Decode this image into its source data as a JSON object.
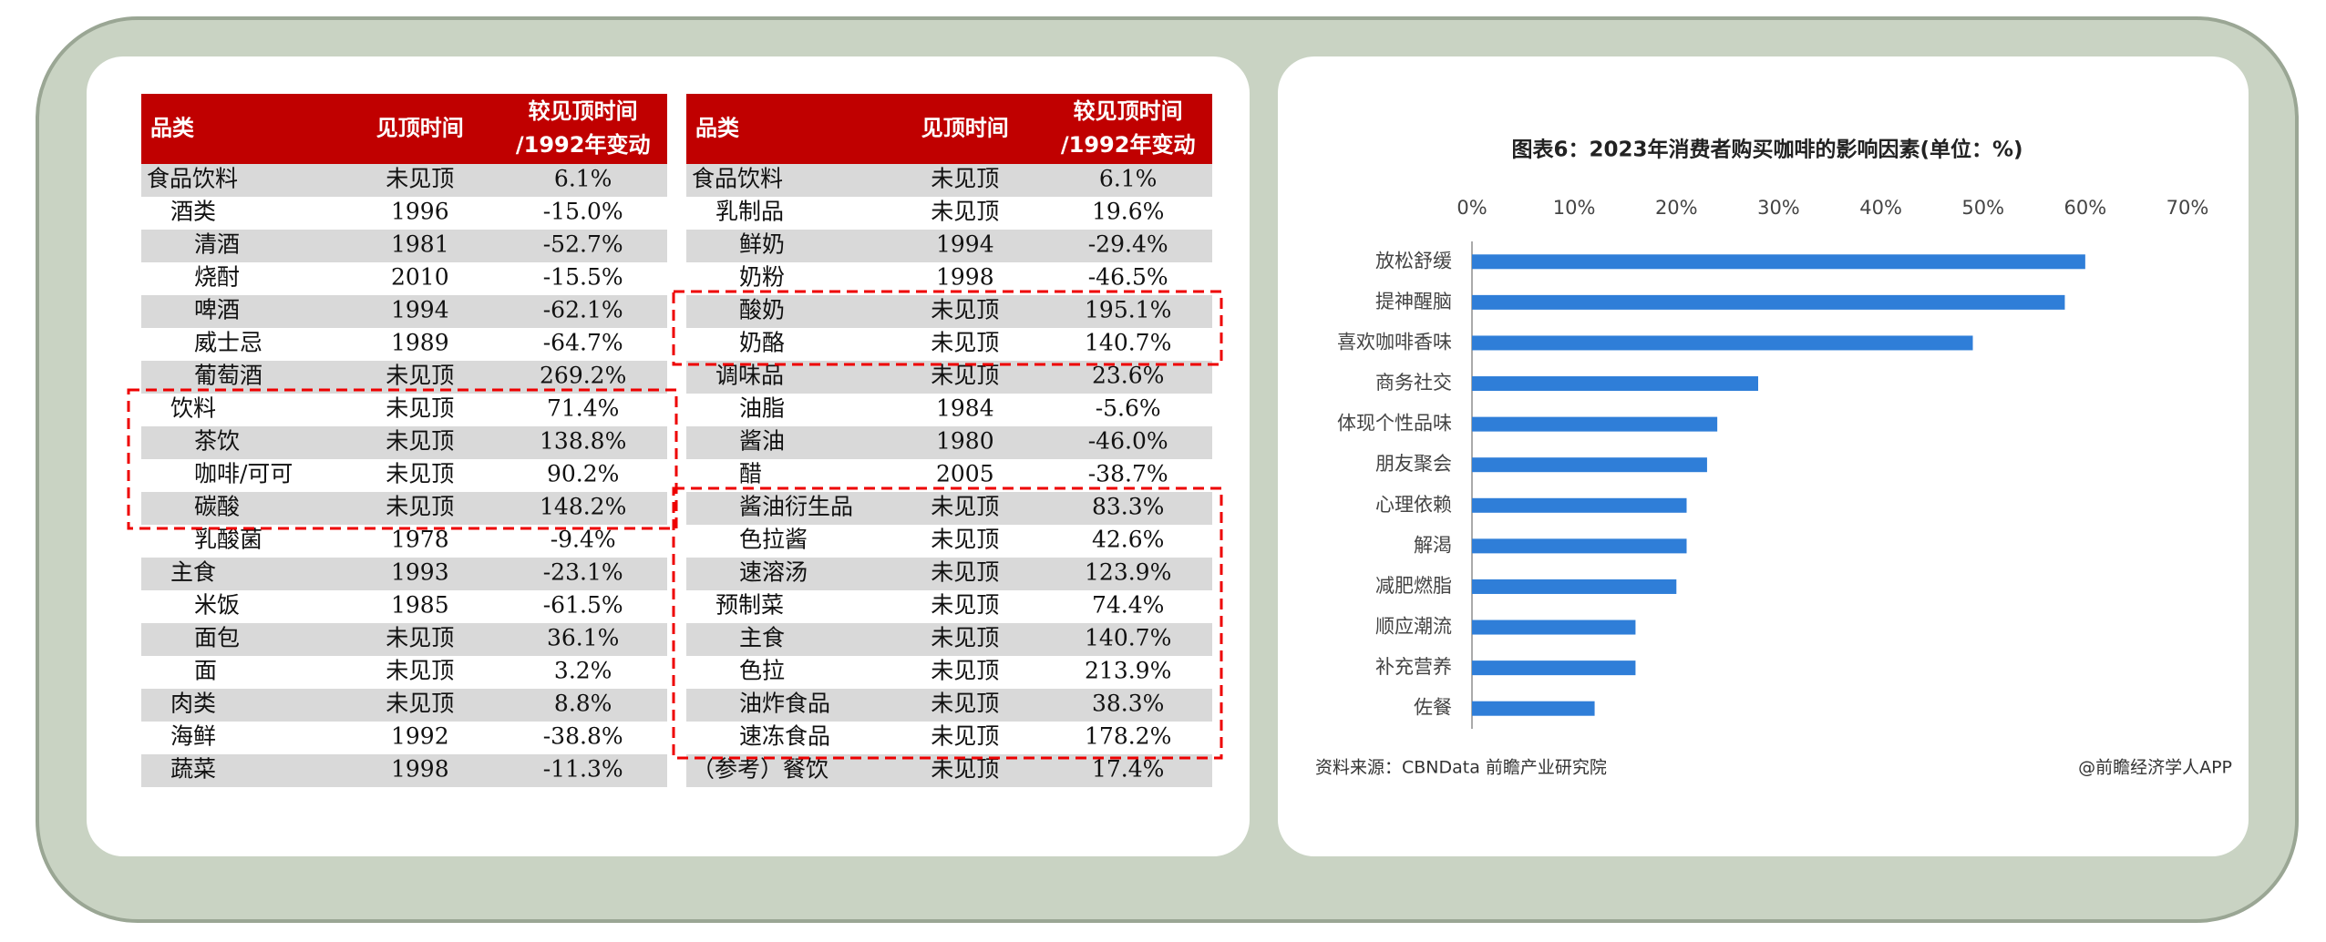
{
  "tables": [
    {
      "header": [
        "品类",
        "见顶时间",
        [
          "较见顶时间",
          "/1992年变动"
        ]
      ],
      "rows": [
        [
          "食品饮料",
          "未见顶",
          "6.1%"
        ],
        [
          "酒类",
          "1996",
          "-15.0%"
        ],
        [
          "清酒",
          "1981",
          "-52.7%"
        ],
        [
          "烧酎",
          "2010",
          "-15.5%"
        ],
        [
          "啤酒",
          "1994",
          "-62.1%"
        ],
        [
          "威士忌",
          "1989",
          "-64.7%"
        ],
        [
          "葡萄酒",
          "未见顶",
          "269.2%"
        ],
        [
          "饮料",
          "未见顶",
          "71.4%"
        ],
        [
          "茶饮",
          "未见顶",
          "138.8%"
        ],
        [
          "咖啡/可可",
          "未见顶",
          "90.2%"
        ],
        [
          "碳酸",
          "未见顶",
          "148.2%"
        ],
        [
          "乳酸菌",
          "1978",
          "-9.4%"
        ],
        [
          "主食",
          "1993",
          "-23.1%"
        ],
        [
          "米饭",
          "1985",
          "-61.5%"
        ],
        [
          "面包",
          "未见顶",
          "36.1%"
        ],
        [
          "面",
          "未见顶",
          "3.2%"
        ],
        [
          "肉类",
          "未见顶",
          "8.8%"
        ],
        [
          "海鲜",
          "1992",
          "-38.8%"
        ],
        [
          "蔬菜",
          "1998",
          "-11.3%"
        ]
      ]
    },
    {
      "header": [
        "品类",
        "见顶时间",
        [
          "较见顶时间",
          "/1992年变动"
        ]
      ],
      "rows": [
        [
          "食品饮料",
          "未见顶",
          "6.1%"
        ],
        [
          "乳制品",
          "未见顶",
          "19.6%"
        ],
        [
          "鲜奶",
          "1994",
          "-29.4%"
        ],
        [
          "奶粉",
          "1998",
          "-46.5%"
        ],
        [
          "酸奶",
          "未见顶",
          "195.1%"
        ],
        [
          "奶酪",
          "未见顶",
          "140.7%"
        ],
        [
          "调味品",
          "未见顶",
          "23.6%"
        ],
        [
          "油脂",
          "1984",
          "-5.6%"
        ],
        [
          "酱油",
          "1980",
          "-46.0%"
        ],
        [
          "醋",
          "2005",
          "-38.7%"
        ],
        [
          "酱油衍生品",
          "未见顶",
          "83.3%"
        ],
        [
          "色拉酱",
          "未见顶",
          "42.6%"
        ],
        [
          "速溶汤",
          "未见顶",
          "123.9%"
        ],
        [
          "预制菜",
          "未见顶",
          "74.4%"
        ],
        [
          "主食",
          "未见顶",
          "140.7%"
        ],
        [
          "色拉",
          "未见顶",
          "213.9%"
        ],
        [
          "油炸食品",
          "未见顶",
          "38.3%"
        ],
        [
          "速冻食品",
          "未见顶",
          "178.2%"
        ],
        [
          "（参考）餐饮",
          "未见顶",
          "17.4%"
        ]
      ]
    }
  ],
  "chart_data": {
    "type": "barh",
    "title": "图表6：2023年消费者购买咖啡的影响因素(单位：%)",
    "categories": [
      "放松舒缓",
      "提神醒脑",
      "喜欢咖啡香味",
      "商务社交",
      "体现个性品味",
      "朋友聚会",
      "心理依赖",
      "解渴",
      "减肥燃脂",
      "顺应潮流",
      "补充营养",
      "佐餐"
    ],
    "values": [
      60,
      58,
      49,
      28,
      24,
      23,
      21,
      21,
      20,
      16,
      16,
      12
    ],
    "color": "#2f7ed8",
    "xlim": [
      0,
      70
    ],
    "xticks": [
      {
        "value": 0,
        "label": "0%"
      },
      {
        "value": 10,
        "label": "10%"
      },
      {
        "value": 20,
        "label": "20%"
      },
      {
        "value": 30,
        "label": "30%"
      },
      {
        "value": 40,
        "label": "40%"
      },
      {
        "value": 50,
        "label": "50%"
      },
      {
        "value": 60,
        "label": "60%"
      },
      {
        "value": 70,
        "label": "70%"
      }
    ],
    "source": "资料来源：CBNData 前瞻产业研究院",
    "credit": "@前瞻经济学人APP"
  }
}
